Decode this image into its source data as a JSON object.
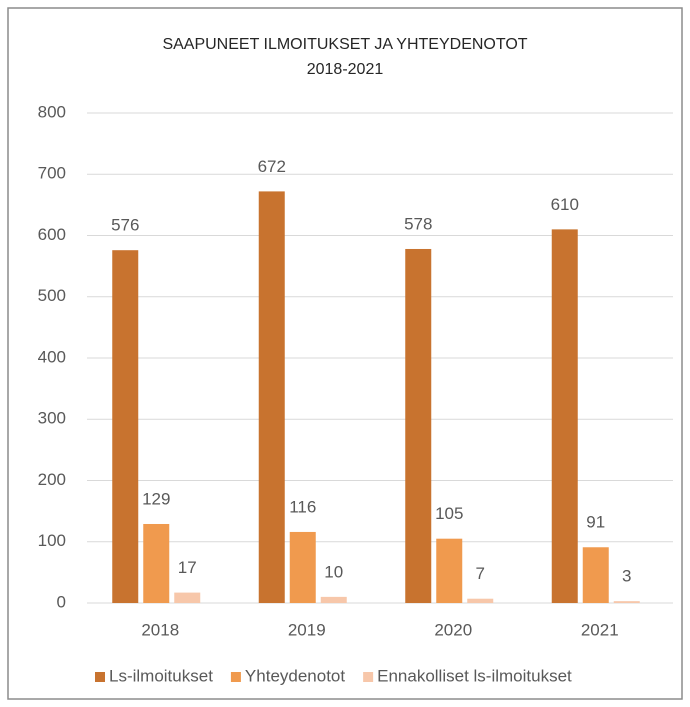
{
  "chart_data": {
    "type": "bar",
    "title": "SAAPUNEET  ILMOITUKSET  JA YHTEYDENOTOT",
    "subtitle": "2018-2021",
    "categories": [
      "2018",
      "2019",
      "2020",
      "2021"
    ],
    "series": [
      {
        "name": "Ls-ilmoitukset",
        "color": "#c8732f",
        "values": [
          576,
          672,
          578,
          610
        ]
      },
      {
        "name": "Yhteydenotot",
        "color": "#f09a4e",
        "values": [
          129,
          116,
          105,
          91
        ]
      },
      {
        "name": "Ennakolliset ls-ilmoitukset",
        "color": "#f7c7aa",
        "values": [
          17,
          10,
          7,
          3
        ]
      }
    ],
    "ylim": [
      0,
      800
    ],
    "yticks": [
      0,
      100,
      200,
      300,
      400,
      500,
      600,
      700,
      800
    ],
    "grid": true,
    "legend": "bottom"
  }
}
